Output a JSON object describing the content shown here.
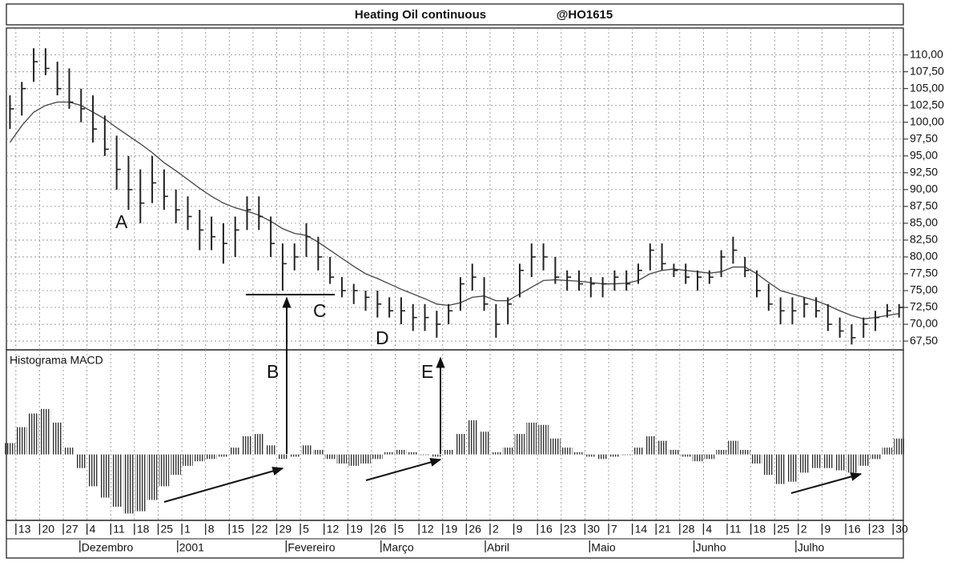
{
  "chart_data": [
    {
      "type": "hlc",
      "title": "Heating Oil continuous",
      "subtitle": "@HO1615",
      "x": [
        -0.25,
        0.25,
        0.75,
        1.25,
        1.75,
        2.25,
        2.75,
        3.25,
        3.75,
        4.25,
        4.75,
        5.25,
        5.75,
        6.25,
        6.75,
        7.25,
        7.75,
        8.25,
        8.75,
        9.25,
        9.75,
        10.25,
        10.75,
        11.25,
        11.75,
        12.25,
        12.75,
        13.25,
        13.75,
        14.25,
        14.75,
        15.25,
        15.75,
        16.25,
        16.75,
        17.25,
        17.75,
        18.25,
        18.75,
        19.25,
        19.75,
        20.25,
        20.75,
        21.25,
        21.75,
        22.25,
        22.75,
        23.25,
        23.75,
        24.25,
        24.75,
        25.25,
        25.75,
        26.25,
        26.75,
        27.25,
        27.75,
        28.25,
        28.75,
        29.25,
        29.75,
        30.25,
        30.75,
        31.25,
        31.75,
        32.25,
        32.75,
        33.25,
        33.75,
        34.25,
        34.75,
        35.25,
        35.75,
        36.25,
        36.75,
        37.25
      ],
      "high": [
        104,
        106,
        111,
        111,
        109,
        108,
        105,
        104,
        101,
        98,
        95,
        93,
        95,
        93,
        90,
        89,
        87,
        86,
        85,
        86,
        89,
        89,
        86,
        82,
        82,
        85,
        83,
        80,
        77,
        76,
        75,
        75,
        74,
        74,
        73,
        73,
        72,
        73,
        77,
        79,
        77,
        73,
        74,
        79,
        82,
        82,
        80,
        78,
        78,
        77,
        77,
        78,
        78,
        79,
        82,
        82,
        79,
        79,
        78,
        78,
        81,
        83,
        80,
        78,
        76,
        74,
        74,
        74,
        74,
        73,
        71,
        70,
        71,
        72,
        73,
        73
      ],
      "low": [
        99,
        101,
        106,
        107,
        104,
        102,
        100,
        97,
        95,
        90,
        87,
        85,
        88,
        87,
        85,
        84,
        81,
        81,
        79,
        80,
        84,
        84,
        80,
        75,
        78,
        80,
        78,
        76,
        74,
        73,
        72,
        71,
        71,
        70,
        69,
        69,
        68,
        70,
        72,
        75,
        72,
        68,
        70,
        74,
        77,
        78,
        76,
        75,
        75,
        74,
        74,
        75,
        75,
        76,
        78,
        78,
        77,
        76,
        75,
        76,
        77,
        79,
        77,
        74,
        72,
        70,
        70,
        71,
        71,
        69,
        68,
        67,
        68,
        69,
        71,
        71
      ],
      "close": [
        102,
        105,
        109,
        108,
        105,
        103,
        102,
        99,
        96,
        93,
        90,
        88,
        91,
        89,
        87,
        86,
        84,
        83,
        82,
        84,
        87,
        86,
        82,
        79,
        80,
        83,
        80,
        77,
        75,
        75,
        74,
        73,
        72,
        72,
        71,
        71,
        70,
        72,
        76,
        77,
        73,
        70,
        73,
        78,
        80,
        80,
        77,
        77,
        76,
        76,
        76,
        77,
        76,
        78,
        81,
        79,
        78,
        77,
        77,
        77,
        80,
        81,
        78,
        75,
        73,
        72,
        72,
        73,
        72,
        70,
        69,
        68,
        70,
        71,
        72,
        72.5
      ],
      "moving_average": {
        "color": "#444444",
        "values": [
          97,
          99.5,
          101.5,
          102.5,
          103,
          103,
          102.5,
          101.5,
          100.5,
          99.2,
          98,
          96.8,
          95.5,
          94,
          92.8,
          91.5,
          90.2,
          89,
          88,
          87.3,
          86.8,
          86.2,
          85.3,
          84.2,
          83.5,
          83.2,
          82.2,
          81,
          79.8,
          78.6,
          77.5,
          76.8,
          76,
          75.2,
          74.5,
          73.8,
          73,
          72.8,
          73.2,
          74,
          74.2,
          73.5,
          73.5,
          74.5,
          75.5,
          76.5,
          76.6,
          76.5,
          76.4,
          76.2,
          76,
          76,
          76.1,
          76.5,
          77.5,
          78,
          78.2,
          78,
          77.8,
          77.6,
          77.8,
          78.5,
          78.5,
          77.5,
          76.2,
          75,
          74.5,
          74,
          73.5,
          72.8,
          72,
          71.3,
          70.8,
          71,
          71.3,
          71.6
        ]
      },
      "color": "#222222",
      "annotations": [
        "A",
        "B",
        "C",
        "D",
        "E"
      ],
      "xlim": [
        -0.4,
        37.43
      ],
      "ylim": [
        66.2,
        114
      ],
      "yticks": [
        {
          "value": 67.5,
          "label": "67,50"
        },
        {
          "value": 70,
          "label": "70,00"
        },
        {
          "value": 72.5,
          "label": "72,50"
        },
        {
          "value": 75,
          "label": "75,00"
        },
        {
          "value": 77.5,
          "label": "77,50"
        },
        {
          "value": 80,
          "label": "80,00"
        },
        {
          "value": 82.5,
          "label": "82,50"
        },
        {
          "value": 85,
          "label": "85,00"
        },
        {
          "value": 87.5,
          "label": "87,50"
        },
        {
          "value": 90,
          "label": "90,00"
        },
        {
          "value": 92.5,
          "label": "92,50"
        },
        {
          "value": 95,
          "label": "95,00"
        },
        {
          "value": 97.5,
          "label": "97,50"
        },
        {
          "value": 100,
          "label": "100,00"
        },
        {
          "value": 102.5,
          "label": "102,50"
        },
        {
          "value": 105,
          "label": "105,00"
        },
        {
          "value": 107.5,
          "label": "107,50"
        },
        {
          "value": 110,
          "label": "110,00"
        }
      ],
      "grid": true
    },
    {
      "type": "bar",
      "title": "Histograma MACD",
      "color": "#333333",
      "x": [
        -0.25,
        0.25,
        0.75,
        1.25,
        1.75,
        2.25,
        2.75,
        3.25,
        3.75,
        4.25,
        4.75,
        5.25,
        5.75,
        6.25,
        6.75,
        7.25,
        7.75,
        8.25,
        8.75,
        9.25,
        9.75,
        10.25,
        10.75,
        11.25,
        11.75,
        12.25,
        12.75,
        13.25,
        13.75,
        14.25,
        14.75,
        15.25,
        15.75,
        16.25,
        16.75,
        17.25,
        17.75,
        18.25,
        18.75,
        19.25,
        19.75,
        20.25,
        20.75,
        21.25,
        21.75,
        22.25,
        22.75,
        23.25,
        23.75,
        24.25,
        24.75,
        25.25,
        25.75,
        26.25,
        26.75,
        27.25,
        27.75,
        28.25,
        28.75,
        29.25,
        29.75,
        30.25,
        30.75,
        31.25,
        31.75,
        32.25,
        32.75,
        33.25,
        33.75,
        34.25,
        34.75,
        35.25,
        35.75,
        36.25,
        36.75,
        37.25
      ],
      "values": [
        0.5,
        1.2,
        1.8,
        2.0,
        1.4,
        0.3,
        -0.6,
        -1.4,
        -1.9,
        -2.3,
        -2.6,
        -2.5,
        -2.0,
        -1.4,
        -0.9,
        -0.5,
        -0.3,
        -0.2,
        -0.1,
        0.3,
        0.8,
        0.9,
        0.4,
        -0.2,
        -0.1,
        0.4,
        0.2,
        -0.2,
        -0.4,
        -0.5,
        -0.4,
        -0.2,
        0.1,
        0.2,
        0.1,
        0,
        -0.1,
        0.2,
        0.9,
        1.5,
        1.0,
        0.1,
        0.3,
        0.9,
        1.4,
        1.3,
        0.7,
        0.3,
        0.1,
        -0.1,
        -0.2,
        -0.1,
        0,
        0.3,
        0.8,
        0.6,
        0.2,
        -0.1,
        -0.3,
        -0.2,
        0.2,
        0.6,
        0.2,
        -0.4,
        -0.9,
        -1.3,
        -1.2,
        -0.8,
        -0.6,
        -0.6,
        -0.7,
        -0.8,
        -0.5,
        -0.2,
        0.3,
        0.7
      ],
      "xlim": [
        -0.4,
        37.43
      ],
      "ylim": [
        -2.9,
        4.6
      ],
      "xticks": [
        {
          "value": 0,
          "label": "13"
        },
        {
          "value": 1,
          "label": "20"
        },
        {
          "value": 2,
          "label": "27"
        },
        {
          "value": 3,
          "label": "4"
        },
        {
          "value": 4,
          "label": "11"
        },
        {
          "value": 5,
          "label": "18"
        },
        {
          "value": 6,
          "label": "25"
        },
        {
          "value": 7,
          "label": "1"
        },
        {
          "value": 8,
          "label": "8"
        },
        {
          "value": 9,
          "label": "15"
        },
        {
          "value": 10,
          "label": "22"
        },
        {
          "value": 11,
          "label": "29"
        },
        {
          "value": 12,
          "label": "5"
        },
        {
          "value": 13,
          "label": "12"
        },
        {
          "value": 14,
          "label": "19"
        },
        {
          "value": 15,
          "label": "26"
        },
        {
          "value": 16,
          "label": "5"
        },
        {
          "value": 17,
          "label": "12"
        },
        {
          "value": 18,
          "label": "19"
        },
        {
          "value": 19,
          "label": "26"
        },
        {
          "value": 20,
          "label": "2"
        },
        {
          "value": 21,
          "label": "9"
        },
        {
          "value": 22,
          "label": "16"
        },
        {
          "value": 23,
          "label": "23"
        },
        {
          "value": 24,
          "label": "30"
        },
        {
          "value": 25,
          "label": "7"
        },
        {
          "value": 26,
          "label": "14"
        },
        {
          "value": 27,
          "label": "21"
        },
        {
          "value": 28,
          "label": "28"
        },
        {
          "value": 29,
          "label": "4"
        },
        {
          "value": 30,
          "label": "11"
        },
        {
          "value": 31,
          "label": "18"
        },
        {
          "value": 32,
          "label": "25"
        },
        {
          "value": 33,
          "label": "2"
        },
        {
          "value": 34,
          "label": "9"
        },
        {
          "value": 35,
          "label": "16"
        },
        {
          "value": 36,
          "label": "23"
        },
        {
          "value": 37,
          "label": "30"
        }
      ],
      "month_ticks": [
        {
          "value": 2.7,
          "label": "Dezembro"
        },
        {
          "value": 6.82,
          "label": "2001"
        },
        {
          "value": 11.4,
          "label": "Fevereiro"
        },
        {
          "value": 15.4,
          "label": "Março"
        },
        {
          "value": 19.8,
          "label": "Abril"
        },
        {
          "value": 24.2,
          "label": "Maio"
        },
        {
          "value": 28.6,
          "label": "Junho"
        },
        {
          "value": 32.9,
          "label": "Julho"
        }
      ],
      "grid": true
    }
  ]
}
